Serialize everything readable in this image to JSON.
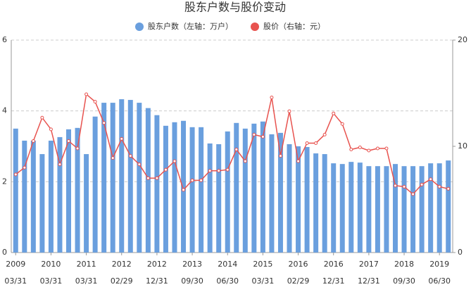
{
  "chart_data": {
    "type": "bar_line",
    "title": "股东户数与股价变动",
    "categories": [
      "2009\n03/31",
      null,
      null,
      null,
      "2010\n03/31",
      null,
      null,
      null,
      "2011\n03/31",
      null,
      null,
      null,
      "2012\n02/29",
      null,
      null,
      null,
      "2012\n12/31",
      null,
      null,
      null,
      "2013\n09/30",
      null,
      null,
      null,
      "2014\n06/30",
      null,
      null,
      null,
      "2015\n03/31",
      null,
      null,
      null,
      "2016\n02/29",
      null,
      null,
      null,
      "2016\n12/31",
      null,
      null,
      null,
      "2017\n12/31",
      null,
      null,
      null,
      "2018\n09/30",
      null,
      null,
      null,
      "2019\n06/30",
      null
    ],
    "series": [
      {
        "name": "股东户数（左轴：万户）",
        "type": "bar",
        "color": "#6a9fde",
        "values": [
          3.5,
          3.16,
          3.16,
          2.78,
          3.16,
          3.26,
          3.48,
          3.52,
          2.78,
          3.84,
          4.23,
          4.23,
          4.33,
          4.31,
          4.23,
          4.08,
          3.88,
          3.58,
          3.68,
          3.72,
          3.54,
          3.54,
          3.08,
          3.06,
          3.42,
          3.66,
          3.5,
          3.64,
          3.7,
          3.34,
          3.38,
          3.06,
          3.0,
          2.98,
          2.8,
          2.78,
          2.52,
          2.5,
          2.56,
          2.54,
          2.44,
          2.44,
          2.44,
          2.5,
          2.44,
          2.44,
          2.44,
          2.52,
          2.52,
          2.6
        ]
      },
      {
        "name": "股价（右轴：元）",
        "type": "line",
        "axis": "y2",
        "color": "#e8534f",
        "values": [
          7.35,
          8.0,
          10.5,
          12.7,
          11.6,
          8.3,
          10.5,
          9.8,
          14.9,
          14.2,
          12.2,
          8.9,
          10.7,
          9.1,
          8.3,
          7.0,
          7.0,
          7.8,
          8.6,
          5.9,
          6.8,
          6.8,
          7.7,
          7.7,
          7.8,
          9.7,
          8.6,
          11.1,
          10.9,
          14.6,
          9.1,
          13.3,
          8.6,
          10.3,
          10.3,
          11.1,
          13.1,
          12.1,
          9.7,
          9.9,
          9.6,
          9.8,
          9.8,
          6.3,
          6.2,
          5.5,
          6.4,
          6.9,
          6.2,
          6.0
        ]
      }
    ],
    "ylim": [
      0,
      6
    ],
    "yticks": [
      0,
      2,
      4,
      6
    ],
    "y2lim": [
      0,
      20
    ],
    "y2ticks": [
      0,
      10,
      20
    ],
    "grid": true
  }
}
